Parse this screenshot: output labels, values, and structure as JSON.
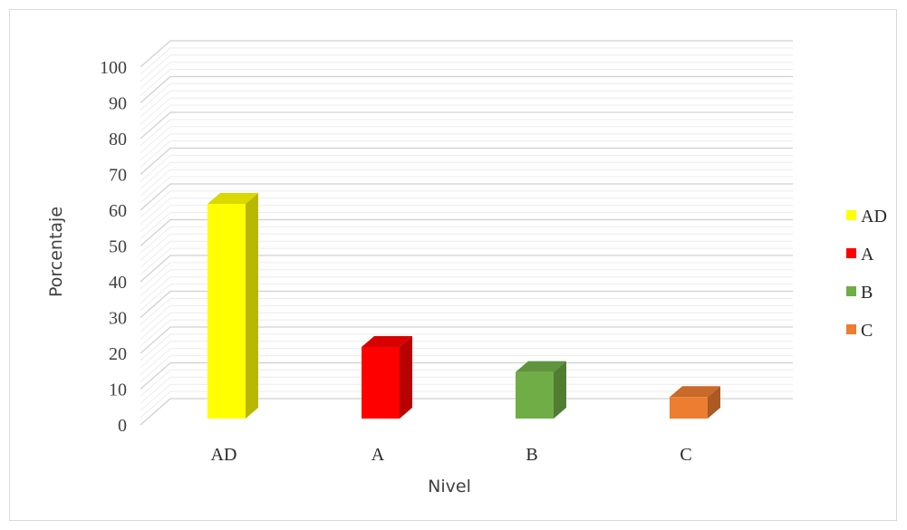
{
  "chart_data": {
    "type": "bar",
    "title": "",
    "xlabel": "Nivel",
    "ylabel": "Porcentaje",
    "categories": [
      "AD",
      "A",
      "B",
      "C"
    ],
    "values": [
      60,
      20,
      13,
      6
    ],
    "ylim": [
      0,
      100
    ],
    "yticks": [
      0,
      10,
      20,
      30,
      40,
      50,
      60,
      70,
      80,
      90,
      100
    ],
    "colors": [
      "#ffff00",
      "#ff0000",
      "#70ad47",
      "#ed7d31"
    ],
    "grid": true,
    "legend": {
      "position": "right",
      "entries": [
        "AD",
        "A",
        "B",
        "C"
      ]
    },
    "style": "3d-column"
  }
}
